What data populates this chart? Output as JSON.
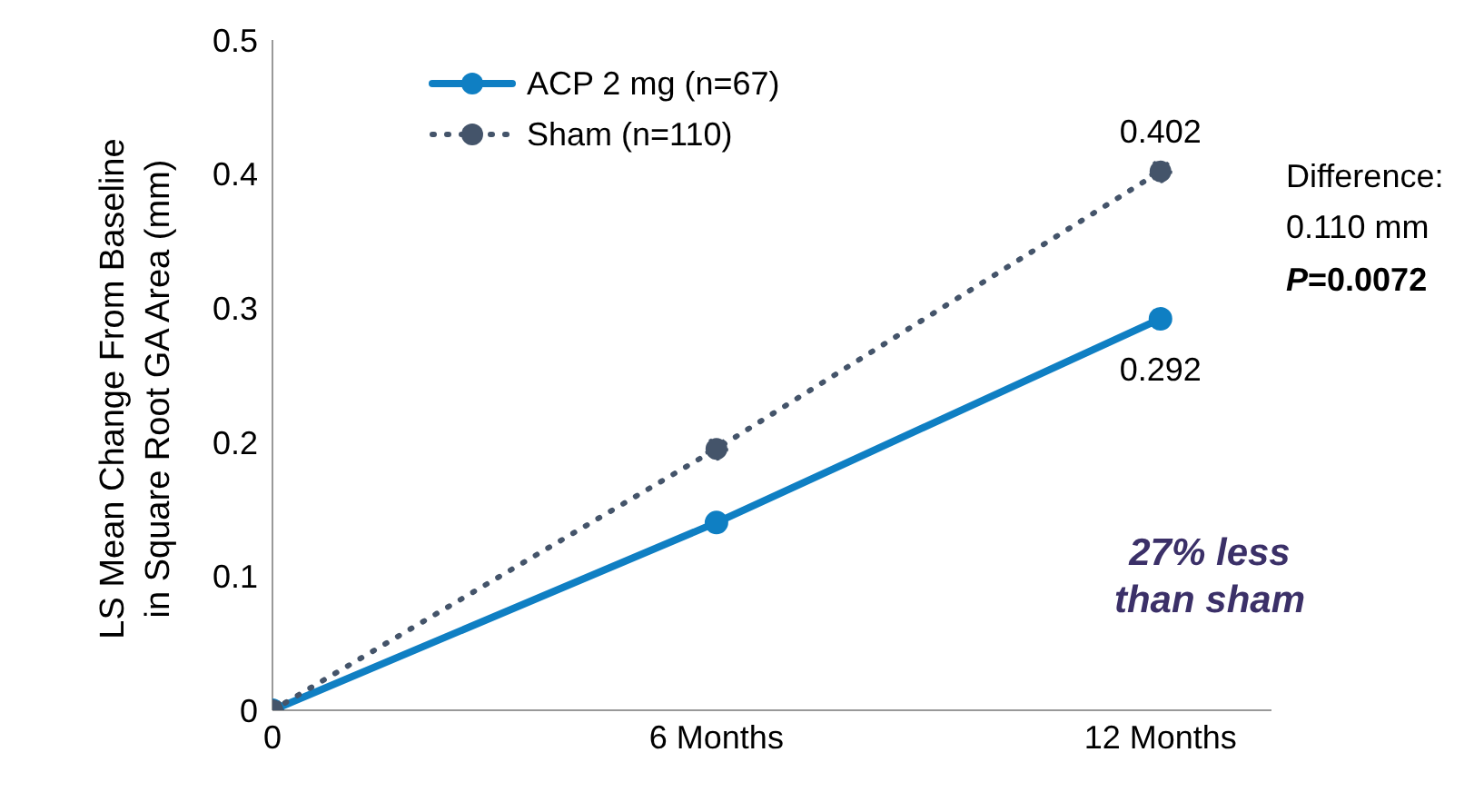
{
  "chart_data": {
    "type": "line",
    "ylabel": "LS Mean Change From Baseline\nin Square Root GA Area (mm)",
    "x": [
      0,
      6,
      12
    ],
    "xlim": [
      0,
      13.5
    ],
    "xticks": [
      0,
      {
        "value": 6,
        "label": "6 Months"
      },
      {
        "value": 12,
        "label": "12 Months"
      }
    ],
    "ylim": [
      0,
      0.5
    ],
    "yticks": [
      0,
      0.1,
      0.2,
      0.3,
      0.4,
      0.5
    ],
    "series": [
      {
        "name": "ACP 2 mg (n=67)",
        "color": "#0f7fc3",
        "values": [
          0,
          0.14,
          0.292
        ],
        "value_labels": [
          null,
          null,
          "0.292"
        ],
        "line_style": "solid"
      },
      {
        "name": "Sham (n=110)",
        "color": "#44546a",
        "values": [
          0,
          0.195,
          0.402
        ],
        "value_labels": [
          null,
          null,
          "0.402"
        ],
        "line_style": "dotted"
      }
    ],
    "marker": "circle",
    "grid": false,
    "legend": "top left",
    "annotations": [
      "Difference:\n0.110 mm",
      "P=0.0072",
      "27% less\nthan sham"
    ]
  }
}
